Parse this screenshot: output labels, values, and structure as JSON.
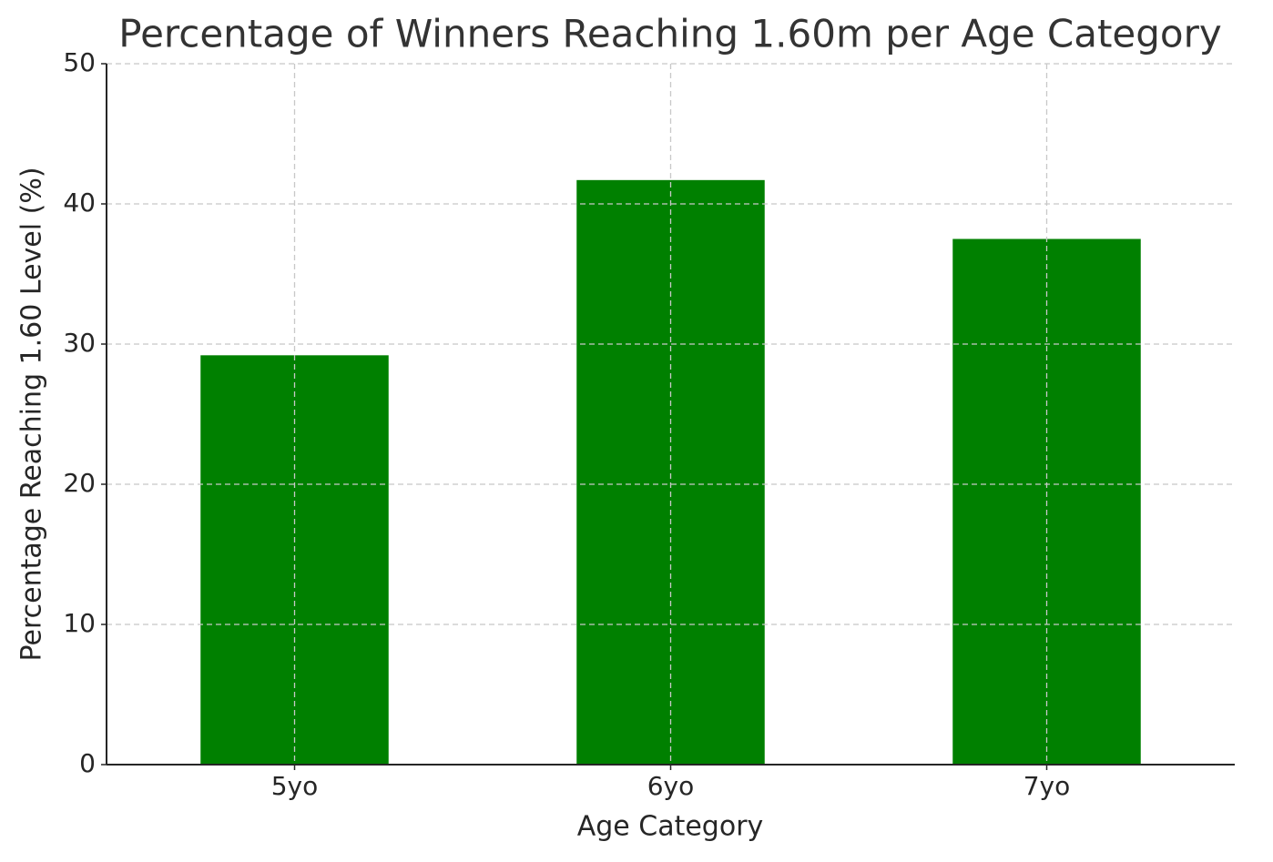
{
  "chart_data": {
    "type": "bar",
    "title": "Percentage of Winners Reaching 1.60m per Age Category",
    "x_label": "Age Category",
    "y_label": "Percentage Reaching 1.60 Level (%)",
    "categories": [
      "5yo",
      "6yo",
      "7yo"
    ],
    "values": [
      29.2,
      41.7,
      37.5
    ],
    "color": "#008000",
    "ylim": [
      0,
      50
    ],
    "yticks": [
      0,
      10,
      20,
      30,
      40,
      50
    ],
    "grid": true
  }
}
